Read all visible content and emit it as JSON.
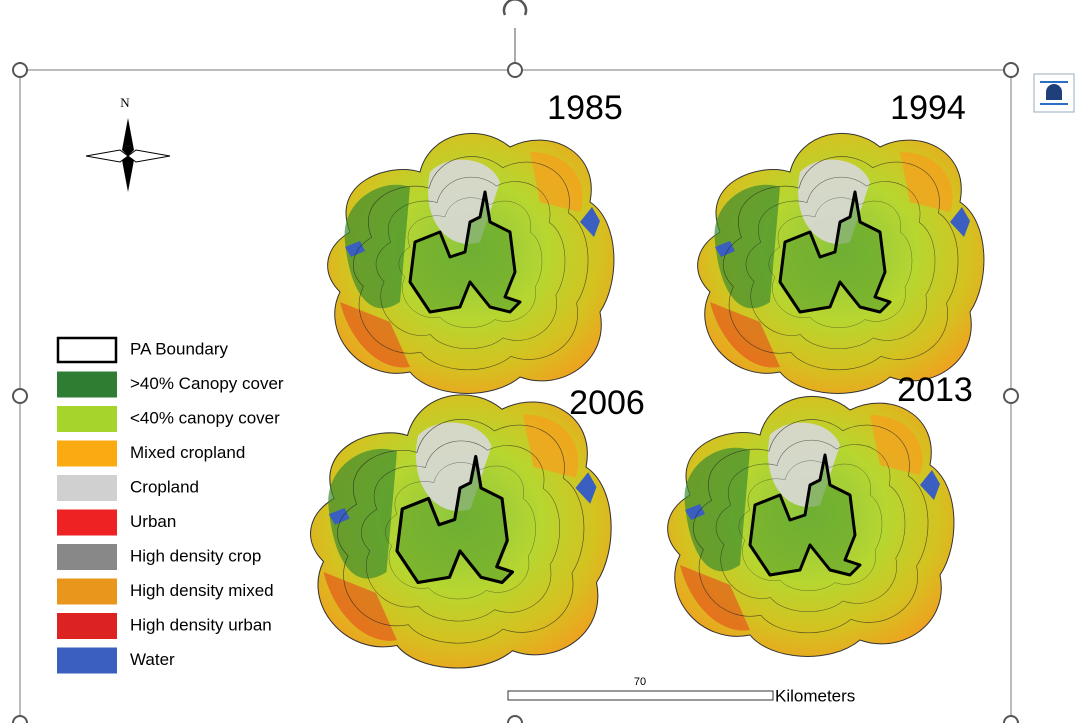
{
  "compass": {
    "label": "N"
  },
  "maps": [
    {
      "year": "1985"
    },
    {
      "year": "1994"
    },
    {
      "year": "2006"
    },
    {
      "year": "2013"
    }
  ],
  "legend": [
    {
      "label": "PA Boundary",
      "color": "#ffffff"
    },
    {
      "label": ">40% Canopy cover",
      "color": "#2e7d32"
    },
    {
      "label": "<40% canopy cover",
      "color": "#a6d42a"
    },
    {
      "label": "Mixed cropland",
      "color": "#fcaa12"
    },
    {
      "label": "Cropland",
      "color": "#d0d0d0"
    },
    {
      "label": "Urban",
      "color": "#ee2222"
    },
    {
      "label": "High density crop",
      "color": "#888888"
    },
    {
      "label": "High density mixed",
      "color": "#e8961c"
    },
    {
      "label": "High density urban",
      "color": "#dd2222"
    },
    {
      "label": "Water",
      "color": "#3a5fc0"
    }
  ],
  "scale_bar": {
    "value": "70",
    "unit": "Kilometers"
  }
}
